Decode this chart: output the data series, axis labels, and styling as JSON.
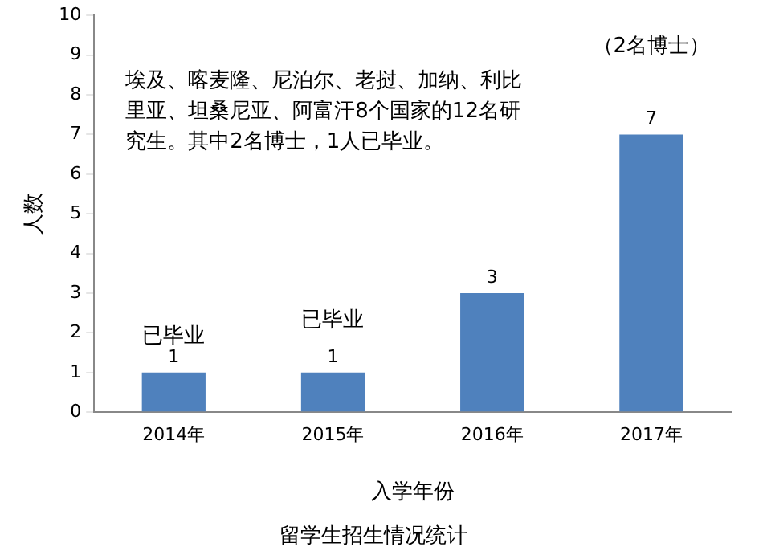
{
  "chart_data": {
    "type": "bar",
    "title": "留学生招生情况统计",
    "xlabel": "入学年份",
    "ylabel": "人数",
    "categories": [
      "2014年",
      "2015年",
      "2016年",
      "2017年"
    ],
    "values": [
      1,
      1,
      3,
      7
    ],
    "color": "#4f81bd",
    "ylim": [
      0,
      10
    ],
    "yticks": [
      0,
      1,
      2,
      3,
      4,
      5,
      6,
      7,
      8,
      9,
      10
    ],
    "grid": false,
    "legend": false,
    "data_labels": true,
    "annotations": [
      "埃及、喀麦隆、尼泊尔、老挝、加纳、利比里亚、坦桑尼亚、阿富汗8个国家的12名研究生。其中2名博士，1人已毕业。",
      "已毕业",
      "已毕业",
      "（2名博士）"
    ]
  }
}
